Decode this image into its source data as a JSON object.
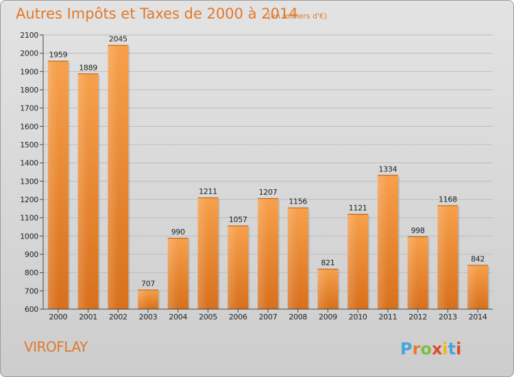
{
  "chart_data": {
    "type": "bar",
    "title": "Autres Impôts et Taxes de 2000 à 2014",
    "subtitle": "(en milliers d'€)",
    "categories": [
      "2000",
      "2001",
      "2002",
      "2003",
      "2004",
      "2005",
      "2006",
      "2007",
      "2008",
      "2009",
      "2010",
      "2011",
      "2012",
      "2013",
      "2014"
    ],
    "values": [
      1959,
      1889,
      2045,
      707,
      990,
      1211,
      1057,
      1207,
      1156,
      821,
      1121,
      1334,
      998,
      1168,
      842
    ],
    "ylim": [
      600,
      2100
    ],
    "yticks": [
      600,
      700,
      800,
      900,
      1000,
      1100,
      1200,
      1300,
      1400,
      1500,
      1600,
      1700,
      1800,
      1900,
      2000,
      2100
    ],
    "xlabel": "",
    "ylabel": "",
    "grid": true,
    "bar_color": "#ee8a2e"
  },
  "location": "VIROFLAY",
  "logo": {
    "letters": [
      "P",
      "r",
      "o",
      "x",
      "i",
      "t",
      "i"
    ],
    "colors": [
      "#4aa3df",
      "#e87a2d",
      "#7fbf3f",
      "#e04a2a",
      "#f2b619",
      "#4aa3df",
      "#e04a2a"
    ]
  }
}
